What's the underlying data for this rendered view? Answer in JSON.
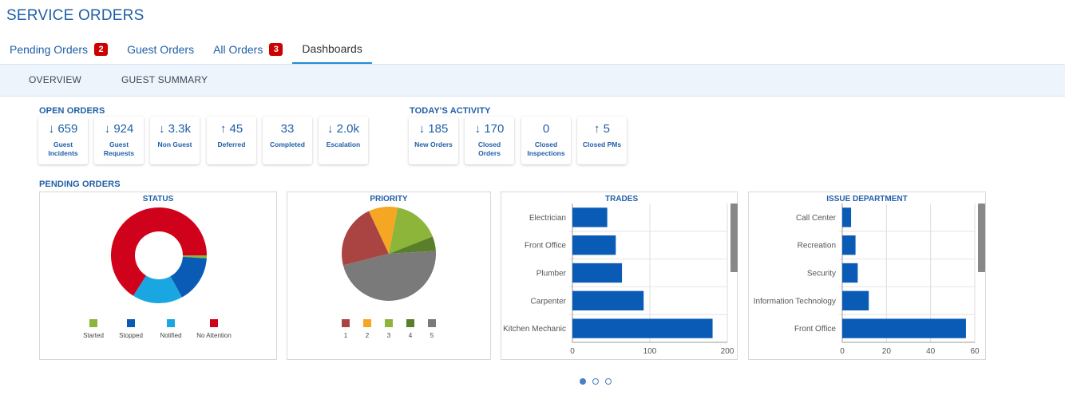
{
  "page": {
    "title": "SERVICE ORDERS"
  },
  "tabs": [
    {
      "label": "Pending Orders",
      "badge": "2"
    },
    {
      "label": "Guest Orders"
    },
    {
      "label": "All Orders",
      "badge": "3"
    },
    {
      "label": "Dashboards",
      "active": true
    }
  ],
  "subtabs": [
    "OVERVIEW",
    "GUEST SUMMARY"
  ],
  "sections": {
    "open_orders": "OPEN ORDERS",
    "todays_activity": "TODAY'S ACTIVITY",
    "pending_orders": "PENDING ORDERS"
  },
  "open_orders": [
    {
      "arrow": "down",
      "value": "659",
      "label": "Guest Incidents"
    },
    {
      "arrow": "down",
      "value": "924",
      "label": "Guest Requests"
    },
    {
      "arrow": "down",
      "value": "3.3k",
      "label": "Non Guest"
    },
    {
      "arrow": "up",
      "value": "45",
      "label": "Deferred"
    },
    {
      "arrow": "none",
      "value": "33",
      "label": "Completed"
    },
    {
      "arrow": "down",
      "value": "2.0k",
      "label": "Escalation"
    }
  ],
  "todays_activity": [
    {
      "arrow": "down",
      "value": "185",
      "label": "New Orders"
    },
    {
      "arrow": "down",
      "value": "170",
      "label": "Closed Orders"
    },
    {
      "arrow": "none",
      "value": "0",
      "label": "Closed Inspections"
    },
    {
      "arrow": "up",
      "value": "5",
      "label": "Closed PMs"
    }
  ],
  "colors": {
    "accent": "#1f5fa8",
    "badge": "#cc0000",
    "bar": "#0a5bb5",
    "started": "#8db53a",
    "stopped": "#0a5bb5",
    "notified": "#1aa6e0",
    "no_attention": "#d0021b",
    "p1": "#a94442",
    "p2": "#f5a623",
    "p3": "#8db53a",
    "p4": "#5a7f2a",
    "p5": "#7a7a7a"
  },
  "chart_data": [
    {
      "type": "pie",
      "title": "STATUS",
      "categories": [
        "Started",
        "Stopped",
        "Notified",
        "No Attention"
      ],
      "values": [
        1,
        16,
        17,
        66
      ],
      "colors": [
        "#8db53a",
        "#0a5bb5",
        "#1aa6e0",
        "#d0021b"
      ],
      "legend": "bottom"
    },
    {
      "type": "pie",
      "title": "PRIORITY",
      "categories": [
        "1",
        "2",
        "3",
        "4",
        "5"
      ],
      "values": [
        22,
        10,
        16,
        5,
        47
      ],
      "colors": [
        "#a94442",
        "#f5a623",
        "#8db53a",
        "#5a7f2a",
        "#7a7a7a"
      ],
      "legend": "bottom"
    },
    {
      "type": "bar",
      "title": "TRADES",
      "categories": [
        "Electrician",
        "Front Office",
        "Plumber",
        "Carpenter",
        "Kitchen Mechanic"
      ],
      "values": [
        45,
        56,
        64,
        92,
        181
      ],
      "xlim": [
        0,
        200
      ],
      "ticks": [
        "0",
        "100",
        "200"
      ],
      "grid": true
    },
    {
      "type": "bar",
      "title": "ISSUE DEPARTMENT",
      "categories": [
        "Call Center",
        "Recreation",
        "Security",
        "Information Technology",
        "Front Office"
      ],
      "values": [
        4,
        6,
        7,
        12,
        56
      ],
      "xlim": [
        0,
        60
      ],
      "ticks": [
        "0",
        "20",
        "40",
        "60"
      ],
      "grid": true
    }
  ],
  "pager": {
    "count": 3,
    "active": 0
  }
}
